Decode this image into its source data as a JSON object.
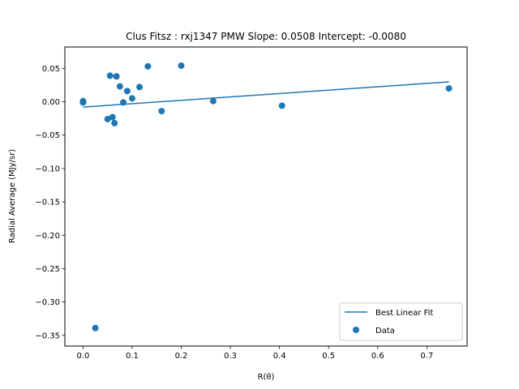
{
  "chart_data": {
    "type": "scatter",
    "title": "Clus Fitsz : rxj1347  PMW  Slope: 0.0508  Intercept: -0.0080",
    "xlabel": "R(θ)",
    "ylabel": "Radial Average (MJy/sr)",
    "xlim": [
      -0.037,
      0.782
    ],
    "ylim": [
      -0.366,
      0.082
    ],
    "xticks": [
      0.0,
      0.1,
      0.2,
      0.3,
      0.4,
      0.5,
      0.6,
      0.7
    ],
    "xtick_labels": [
      "0.0",
      "0.1",
      "0.2",
      "0.3",
      "0.4",
      "0.5",
      "0.6",
      "0.7"
    ],
    "yticks": [
      0.05,
      0.0,
      -0.05,
      -0.1,
      -0.15,
      -0.2,
      -0.25,
      -0.3,
      -0.35
    ],
    "ytick_labels": [
      "0.05",
      "0.00",
      "−0.05",
      "−0.10",
      "−0.15",
      "−0.20",
      "−0.25",
      "−0.30",
      "−0.35"
    ],
    "grid": false,
    "legend_position": "bottom-right",
    "colors": {
      "series": "#1f77b4"
    },
    "series": [
      {
        "name": "Best Linear Fit",
        "type": "line",
        "x": [
          0.0,
          0.745
        ],
        "y": [
          -0.008,
          0.0298
        ]
      },
      {
        "name": "Data",
        "type": "scatter",
        "x": [
          0.0,
          0.0,
          0.0,
          0.025,
          0.05,
          0.055,
          0.06,
          0.064,
          0.068,
          0.075,
          0.082,
          0.09,
          0.1,
          0.115,
          0.132,
          0.16,
          0.2,
          0.265,
          0.405,
          0.745
        ],
        "y": [
          0.001,
          -0.001,
          0.0,
          -0.339,
          -0.026,
          0.039,
          -0.023,
          -0.032,
          0.038,
          0.023,
          -0.001,
          0.016,
          0.005,
          0.022,
          0.053,
          -0.014,
          0.054,
          0.001,
          -0.006,
          0.02
        ]
      }
    ]
  }
}
